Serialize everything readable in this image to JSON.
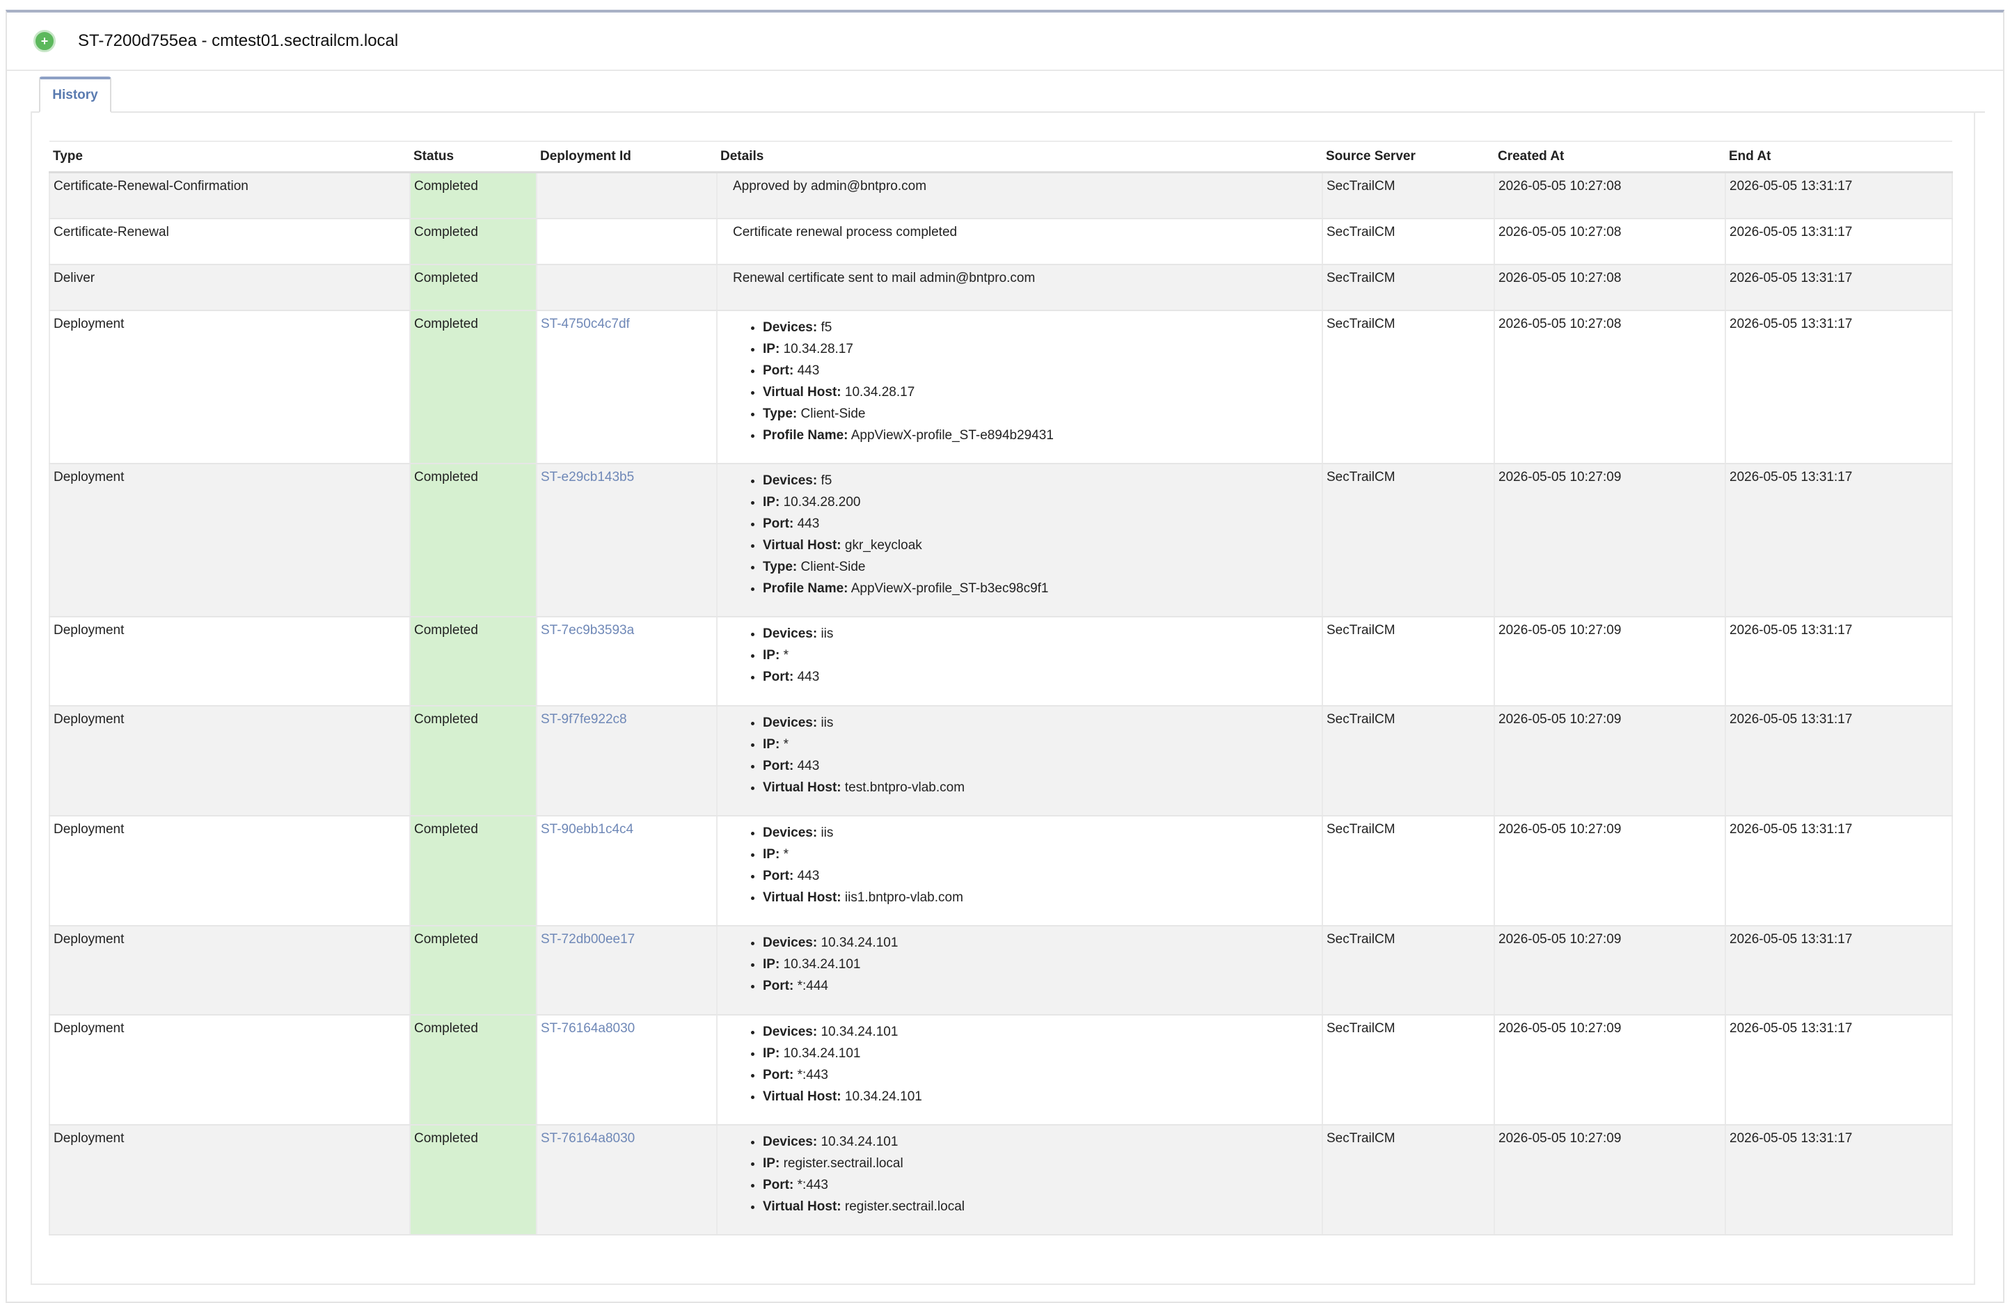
{
  "header": {
    "title": "ST-7200d755ea - cmtest01.sectrailcm.local",
    "status_icon": "plus-circle-icon",
    "status_color": "#5cb85c"
  },
  "tabs": [
    {
      "label": "History"
    }
  ],
  "table": {
    "columns": [
      "Type",
      "Status",
      "Deployment Id",
      "Details",
      "Source Server",
      "Created At",
      "End At"
    ],
    "rows": [
      {
        "type": "Certificate-Renewal-Confirmation",
        "status": "Completed",
        "deployment_id": "",
        "details_text": "Approved by admin@bntpro.com",
        "details": [],
        "source": "SecTrailCM",
        "created": "2026-05-05 10:27:08",
        "end": "2026-05-05 13:31:17"
      },
      {
        "type": "Certificate-Renewal",
        "status": "Completed",
        "deployment_id": "",
        "details_text": "Certificate renewal process completed",
        "details": [],
        "source": "SecTrailCM",
        "created": "2026-05-05 10:27:08",
        "end": "2026-05-05 13:31:17"
      },
      {
        "type": "Deliver",
        "status": "Completed",
        "deployment_id": "",
        "details_text": "Renewal certificate sent to mail admin@bntpro.com",
        "details": [],
        "source": "SecTrailCM",
        "created": "2026-05-05 10:27:08",
        "end": "2026-05-05 13:31:17"
      },
      {
        "type": "Deployment",
        "status": "Completed",
        "deployment_id": "ST-4750c4c7df",
        "details_text": "",
        "details": [
          {
            "k": "Devices:",
            "v": "f5"
          },
          {
            "k": "IP:",
            "v": "10.34.28.17"
          },
          {
            "k": "Port:",
            "v": "443"
          },
          {
            "k": "Virtual Host:",
            "v": "10.34.28.17"
          },
          {
            "k": "Type:",
            "v": "Client-Side"
          },
          {
            "k": "Profile Name:",
            "v": "AppViewX-profile_ST-e894b29431"
          }
        ],
        "source": "SecTrailCM",
        "created": "2026-05-05 10:27:08",
        "end": "2026-05-05 13:31:17"
      },
      {
        "type": "Deployment",
        "status": "Completed",
        "deployment_id": "ST-e29cb143b5",
        "details_text": "",
        "details": [
          {
            "k": "Devices:",
            "v": "f5"
          },
          {
            "k": "IP:",
            "v": "10.34.28.200"
          },
          {
            "k": "Port:",
            "v": "443"
          },
          {
            "k": "Virtual Host:",
            "v": "gkr_keycloak"
          },
          {
            "k": "Type:",
            "v": "Client-Side"
          },
          {
            "k": "Profile Name:",
            "v": "AppViewX-profile_ST-b3ec98c9f1"
          }
        ],
        "source": "SecTrailCM",
        "created": "2026-05-05 10:27:09",
        "end": "2026-05-05 13:31:17"
      },
      {
        "type": "Deployment",
        "status": "Completed",
        "deployment_id": "ST-7ec9b3593a",
        "details_text": "",
        "details": [
          {
            "k": "Devices:",
            "v": "iis"
          },
          {
            "k": "IP:",
            "v": "*"
          },
          {
            "k": "Port:",
            "v": "443"
          }
        ],
        "source": "SecTrailCM",
        "created": "2026-05-05 10:27:09",
        "end": "2026-05-05 13:31:17"
      },
      {
        "type": "Deployment",
        "status": "Completed",
        "deployment_id": "ST-9f7fe922c8",
        "details_text": "",
        "details": [
          {
            "k": "Devices:",
            "v": "iis"
          },
          {
            "k": "IP:",
            "v": "*"
          },
          {
            "k": "Port:",
            "v": "443"
          },
          {
            "k": "Virtual Host:",
            "v": "test.bntpro-vlab.com"
          }
        ],
        "source": "SecTrailCM",
        "created": "2026-05-05 10:27:09",
        "end": "2026-05-05 13:31:17"
      },
      {
        "type": "Deployment",
        "status": "Completed",
        "deployment_id": "ST-90ebb1c4c4",
        "details_text": "",
        "details": [
          {
            "k": "Devices:",
            "v": "iis"
          },
          {
            "k": "IP:",
            "v": "*"
          },
          {
            "k": "Port:",
            "v": "443"
          },
          {
            "k": "Virtual Host:",
            "v": "iis1.bntpro-vlab.com"
          }
        ],
        "source": "SecTrailCM",
        "created": "2026-05-05 10:27:09",
        "end": "2026-05-05 13:31:17"
      },
      {
        "type": "Deployment",
        "status": "Completed",
        "deployment_id": "ST-72db00ee17",
        "details_text": "",
        "details": [
          {
            "k": "Devices:",
            "v": "10.34.24.101"
          },
          {
            "k": "IP:",
            "v": "10.34.24.101"
          },
          {
            "k": "Port:",
            "v": "*:444"
          }
        ],
        "source": "SecTrailCM",
        "created": "2026-05-05 10:27:09",
        "end": "2026-05-05 13:31:17"
      },
      {
        "type": "Deployment",
        "status": "Completed",
        "deployment_id": "ST-76164a8030",
        "details_text": "",
        "details": [
          {
            "k": "Devices:",
            "v": "10.34.24.101"
          },
          {
            "k": "IP:",
            "v": "10.34.24.101"
          },
          {
            "k": "Port:",
            "v": "*:443"
          },
          {
            "k": "Virtual Host:",
            "v": "10.34.24.101"
          }
        ],
        "source": "SecTrailCM",
        "created": "2026-05-05 10:27:09",
        "end": "2026-05-05 13:31:17"
      },
      {
        "type": "Deployment",
        "status": "Completed",
        "deployment_id": "ST-76164a8030",
        "details_text": "",
        "details": [
          {
            "k": "Devices:",
            "v": "10.34.24.101"
          },
          {
            "k": "IP:",
            "v": "register.sectrail.local"
          },
          {
            "k": "Port:",
            "v": "*:443"
          },
          {
            "k": "Virtual Host:",
            "v": "register.sectrail.local"
          }
        ],
        "source": "SecTrailCM",
        "created": "2026-05-05 10:27:09",
        "end": "2026-05-05 13:31:17"
      }
    ]
  },
  "colors": {
    "status_completed_bg": "#d6f0d0",
    "link": "#6f88b7",
    "tab_accent": "#8da0c5"
  }
}
